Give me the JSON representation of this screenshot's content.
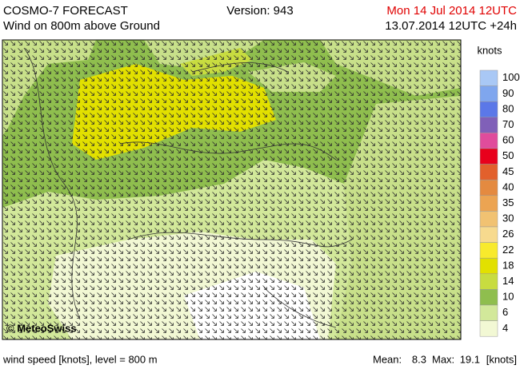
{
  "header": {
    "title": "COSMO-7 FORECAST",
    "subtitle": "Wind on 800m above Ground",
    "version": "Version: 943",
    "valid_time": "Mon 14 Jul 2014 12UTC",
    "run_time": "13.07.2014 12UTC +24h"
  },
  "map": {
    "copyright": "© MeteoSwiss"
  },
  "legend": {
    "title": "knots",
    "items": [
      {
        "value": 100,
        "color": "#a9c8f5"
      },
      {
        "value": 90,
        "color": "#7fa6ee"
      },
      {
        "value": 80,
        "color": "#5b78e8"
      },
      {
        "value": 70,
        "color": "#8060b8"
      },
      {
        "value": 60,
        "color": "#e04c9c"
      },
      {
        "value": 50,
        "color": "#e8001c"
      },
      {
        "value": 45,
        "color": "#e2602c"
      },
      {
        "value": 40,
        "color": "#e48a40"
      },
      {
        "value": 35,
        "color": "#eca452"
      },
      {
        "value": 30,
        "color": "#f1c272"
      },
      {
        "value": 26,
        "color": "#f7da8e"
      },
      {
        "value": 22,
        "color": "#f8ea2c"
      },
      {
        "value": 18,
        "color": "#e2e000"
      },
      {
        "value": 14,
        "color": "#c8dc40"
      },
      {
        "value": 10,
        "color": "#8fbe4e"
      },
      {
        "value": 6,
        "color": "#d2e89a"
      },
      {
        "value": 4,
        "color": "#f2f8d4"
      }
    ]
  },
  "footer": {
    "description": "wind speed [knots], level = 800 m",
    "mean_label": "Mean:",
    "mean": 8.3,
    "max_label": "Max:",
    "max": 19.1,
    "unit": "[knots]"
  }
}
